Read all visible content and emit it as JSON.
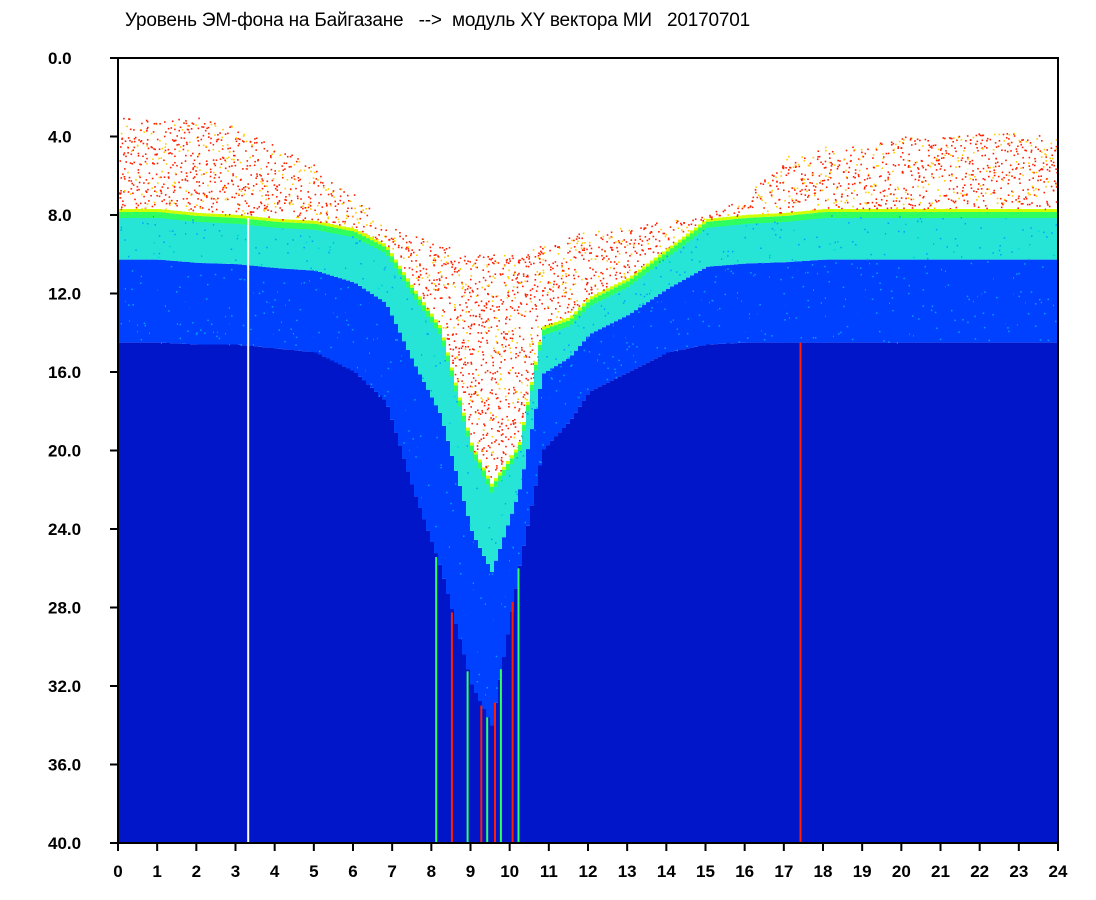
{
  "chart_data": {
    "type": "heatmap",
    "title": "Уровень ЭМ-фона на Байгазане   -->  модуль XY вектора МИ   20170701",
    "x_ticks": [
      "0",
      "1",
      "2",
      "3",
      "4",
      "5",
      "6",
      "7",
      "8",
      "9",
      "10",
      "11",
      "12",
      "13",
      "14",
      "15",
      "16",
      "17",
      "18",
      "19",
      "20",
      "21",
      "22",
      "23",
      "24"
    ],
    "y_ticks": [
      "0.0",
      "4.0",
      "8.0",
      "12.0",
      "16.0",
      "20.0",
      "24.0",
      "28.0",
      "32.0",
      "36.0",
      "40.0"
    ],
    "xlim": [
      0,
      24
    ],
    "ylim": [
      40.0,
      0.0
    ],
    "y_inverted": true,
    "colormap": [
      "#0016c8",
      "#0040ff",
      "#00a0ff",
      "#00e0d0",
      "#30ff60",
      "#d0ff00",
      "#ffcc00",
      "#ff2000"
    ],
    "background_color": "#ffffff",
    "band_edges_by_hour": {
      "hours": [
        0,
        1,
        2,
        3,
        4,
        5,
        6,
        6.8,
        7.5,
        8.2,
        9.0,
        9.5,
        10.2,
        10.8,
        11.5,
        12,
        13,
        14,
        15,
        16,
        17,
        18,
        19,
        20,
        21,
        22,
        23,
        24
      ],
      "noise_top": [
        3.0,
        3.2,
        3.0,
        3.5,
        4.5,
        5.5,
        7.0,
        8.5,
        9.0,
        9.5,
        10.0,
        10.0,
        10.0,
        9.5,
        9.0,
        8.8,
        8.5,
        8.3,
        8.0,
        7.0,
        5.0,
        4.5,
        4.5,
        4.0,
        4.0,
        3.8,
        3.8,
        4.0
      ],
      "green_top": [
        8.0,
        8.0,
        8.2,
        8.3,
        8.5,
        8.6,
        9.0,
        9.8,
        12.0,
        14.0,
        20.0,
        22.0,
        20.0,
        14.0,
        13.5,
        12.5,
        11.5,
        10.0,
        8.5,
        8.3,
        8.2,
        8.0,
        8.0,
        8.0,
        8.0,
        8.0,
        8.0,
        8.0
      ],
      "blue_top": [
        14.5,
        14.5,
        14.6,
        14.6,
        14.8,
        15.0,
        16.0,
        17.5,
        22.0,
        26.0,
        32.0,
        34.0,
        26.0,
        20.0,
        18.5,
        17.0,
        16.0,
        15.0,
        14.6,
        14.5,
        14.5,
        14.5,
        14.5,
        14.5,
        14.5,
        14.5,
        14.5,
        14.5
      ]
    }
  }
}
